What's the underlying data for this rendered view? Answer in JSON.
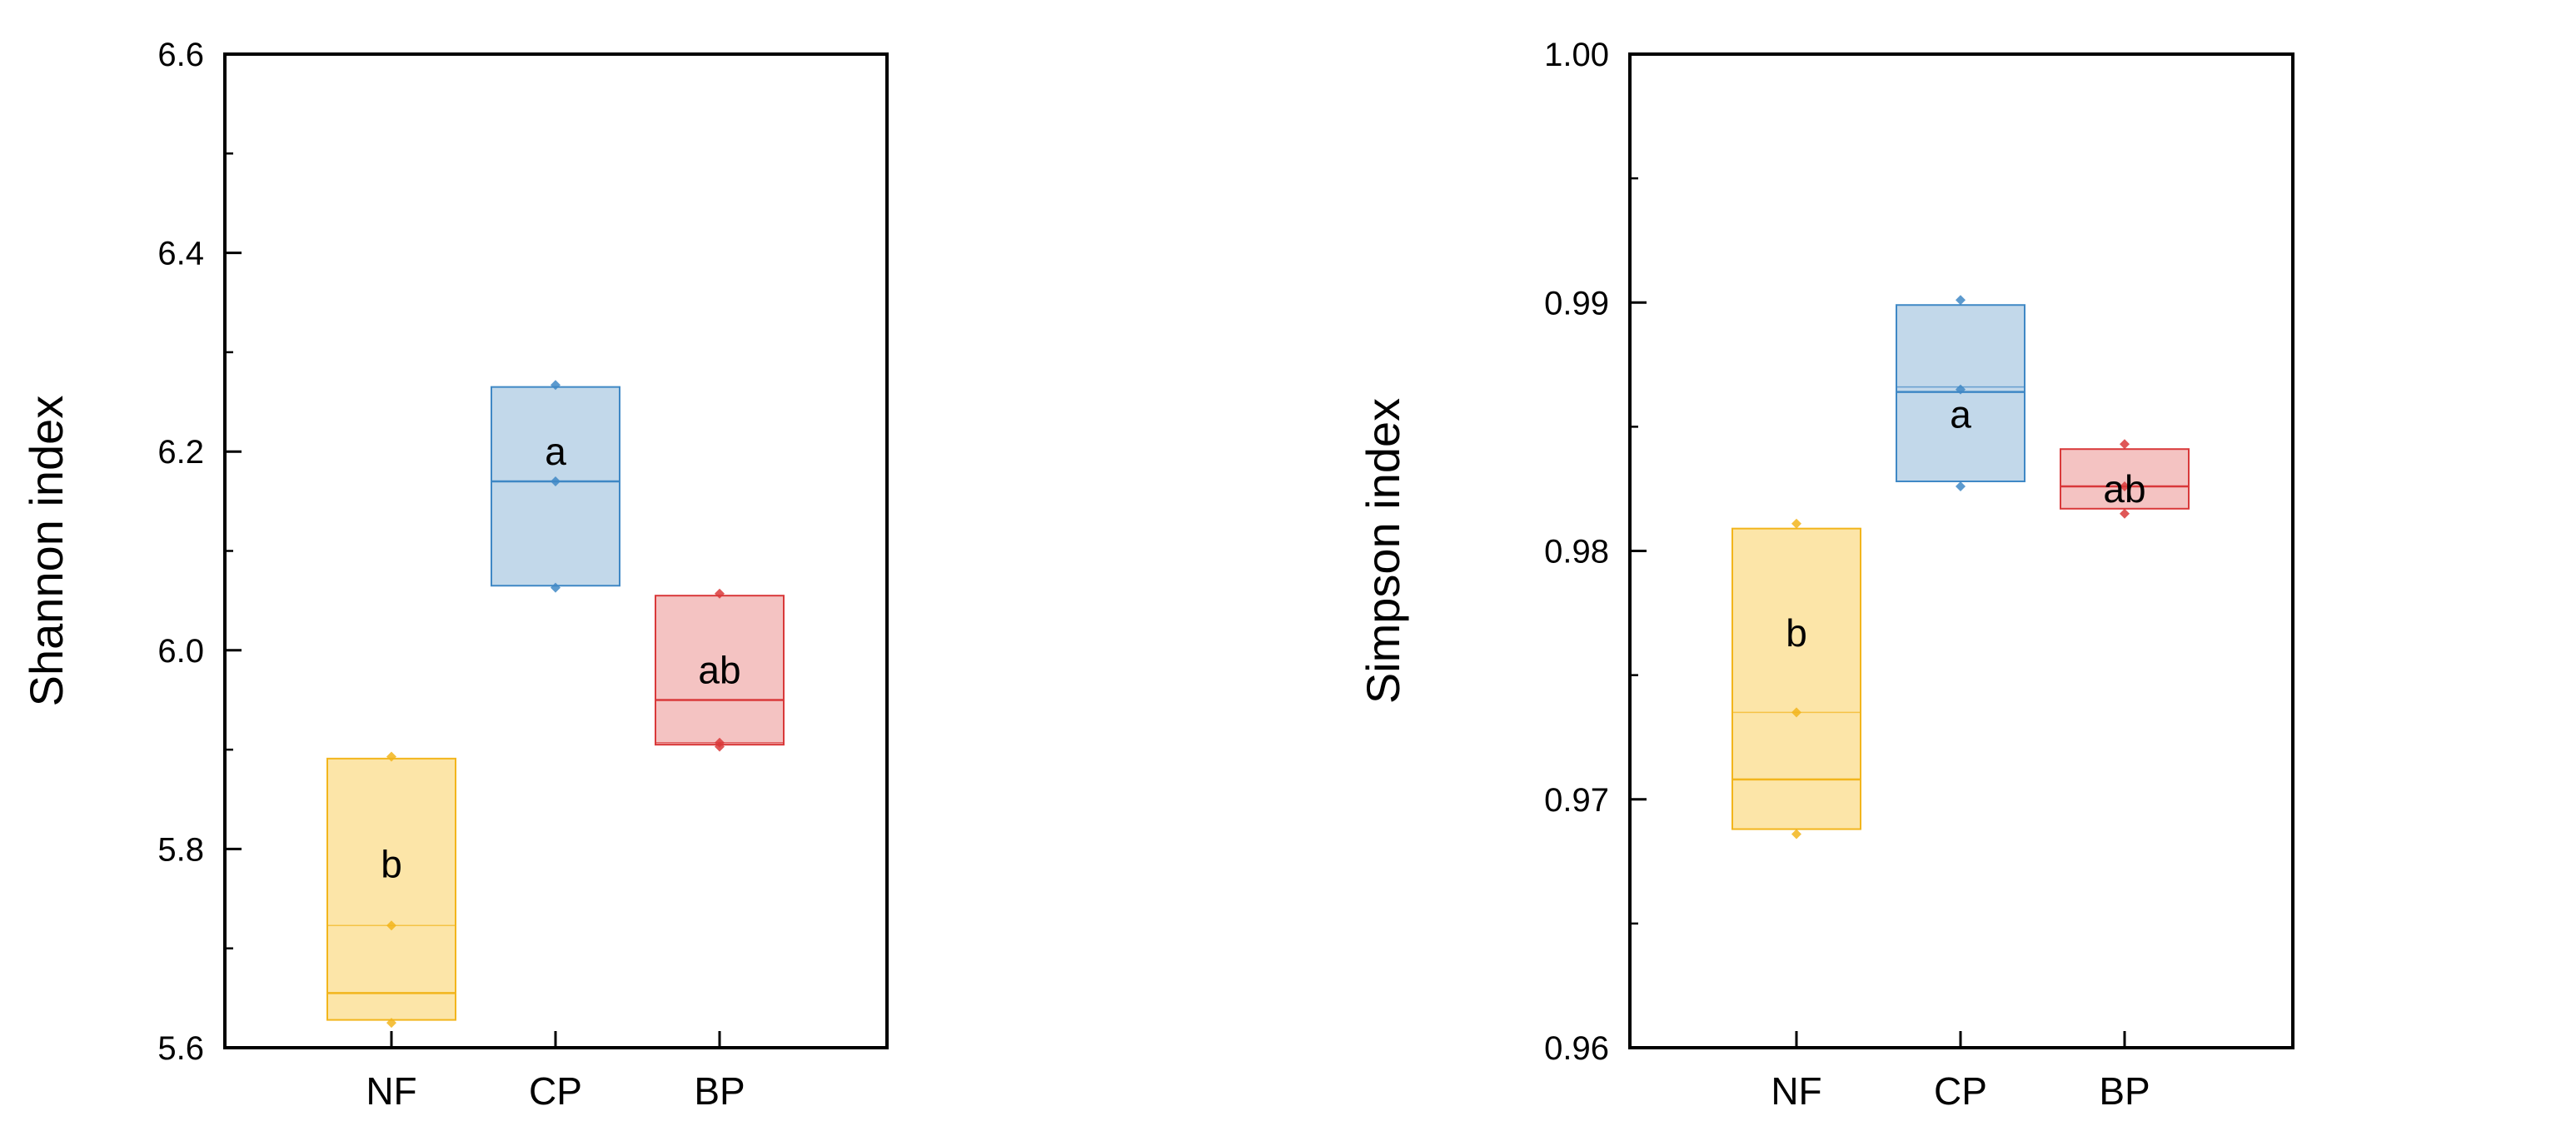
{
  "figure": {
    "colors": {
      "NF": {
        "fill": "#FCE5A8",
        "stroke": "#F2B51C"
      },
      "CP": {
        "fill": "#C2D8EA",
        "stroke": "#3F88C5"
      },
      "BP": {
        "fill": "#F4C3C2",
        "stroke": "#D9393A"
      }
    }
  },
  "chart_data": [
    {
      "type": "box",
      "title": "",
      "xlabel": "",
      "ylabel": "Shannon index",
      "ylim": [
        5.6,
        6.6
      ],
      "yticks": [
        5.6,
        5.8,
        6.0,
        6.2,
        6.4,
        6.6
      ],
      "ytick_labels": [
        "5.6",
        "5.8",
        "6.0",
        "6.2",
        "6.4",
        "6.6"
      ],
      "ytick_decimals": 1,
      "categories": [
        "NF",
        "CP",
        "BP"
      ],
      "boxes": [
        {
          "group": "NF",
          "min": 5.625,
          "q1": 5.628,
          "median": 5.655,
          "mean": 5.723,
          "q3": 5.891,
          "max": 5.893,
          "points": [
            5.625,
            5.723,
            5.893
          ],
          "label": "b",
          "label_y": 5.785
        },
        {
          "group": "CP",
          "min": 6.063,
          "q1": 6.065,
          "median": 6.17,
          "mean": 6.17,
          "q3": 6.265,
          "max": 6.267,
          "points": [
            6.063,
            6.17,
            6.267
          ],
          "label": "a",
          "label_y": 6.2
        },
        {
          "group": "BP",
          "min": 5.903,
          "q1": 5.905,
          "median": 5.95,
          "mean": 5.907,
          "q3": 6.055,
          "max": 6.057,
          "points": [
            5.903,
            5.907,
            6.057
          ],
          "label": "ab",
          "label_y": 5.98
        }
      ]
    },
    {
      "type": "box",
      "title": "",
      "xlabel": "",
      "ylabel": "Simpson index",
      "ylim": [
        0.96,
        1.0
      ],
      "yticks": [
        0.96,
        0.97,
        0.98,
        0.99,
        1.0
      ],
      "ytick_labels": [
        "0.96",
        "0.97",
        "0.98",
        "0.99",
        "1.00"
      ],
      "ytick_decimals": 2,
      "categories": [
        "NF",
        "CP",
        "BP"
      ],
      "boxes": [
        {
          "group": "NF",
          "min": 0.9686,
          "q1": 0.9688,
          "median": 0.9708,
          "mean": 0.9735,
          "q3": 0.9809,
          "max": 0.9811,
          "points": [
            0.9686,
            0.9735,
            0.9811
          ],
          "label": "b",
          "label_y": 0.9767
        },
        {
          "group": "CP",
          "min": 0.9826,
          "q1": 0.9828,
          "median": 0.9864,
          "mean": 0.9866,
          "q3": 0.9899,
          "max": 0.9901,
          "points": [
            0.9826,
            0.9865,
            0.9901
          ],
          "label": "a",
          "label_y": 0.9855
        },
        {
          "group": "BP",
          "min": 0.9815,
          "q1": 0.9817,
          "median": 0.9826,
          "mean": 0.9826,
          "q3": 0.9841,
          "max": 0.9843,
          "points": [
            0.9815,
            0.9826,
            0.9843
          ],
          "label": "ab",
          "label_y": 0.9825
        }
      ]
    }
  ]
}
